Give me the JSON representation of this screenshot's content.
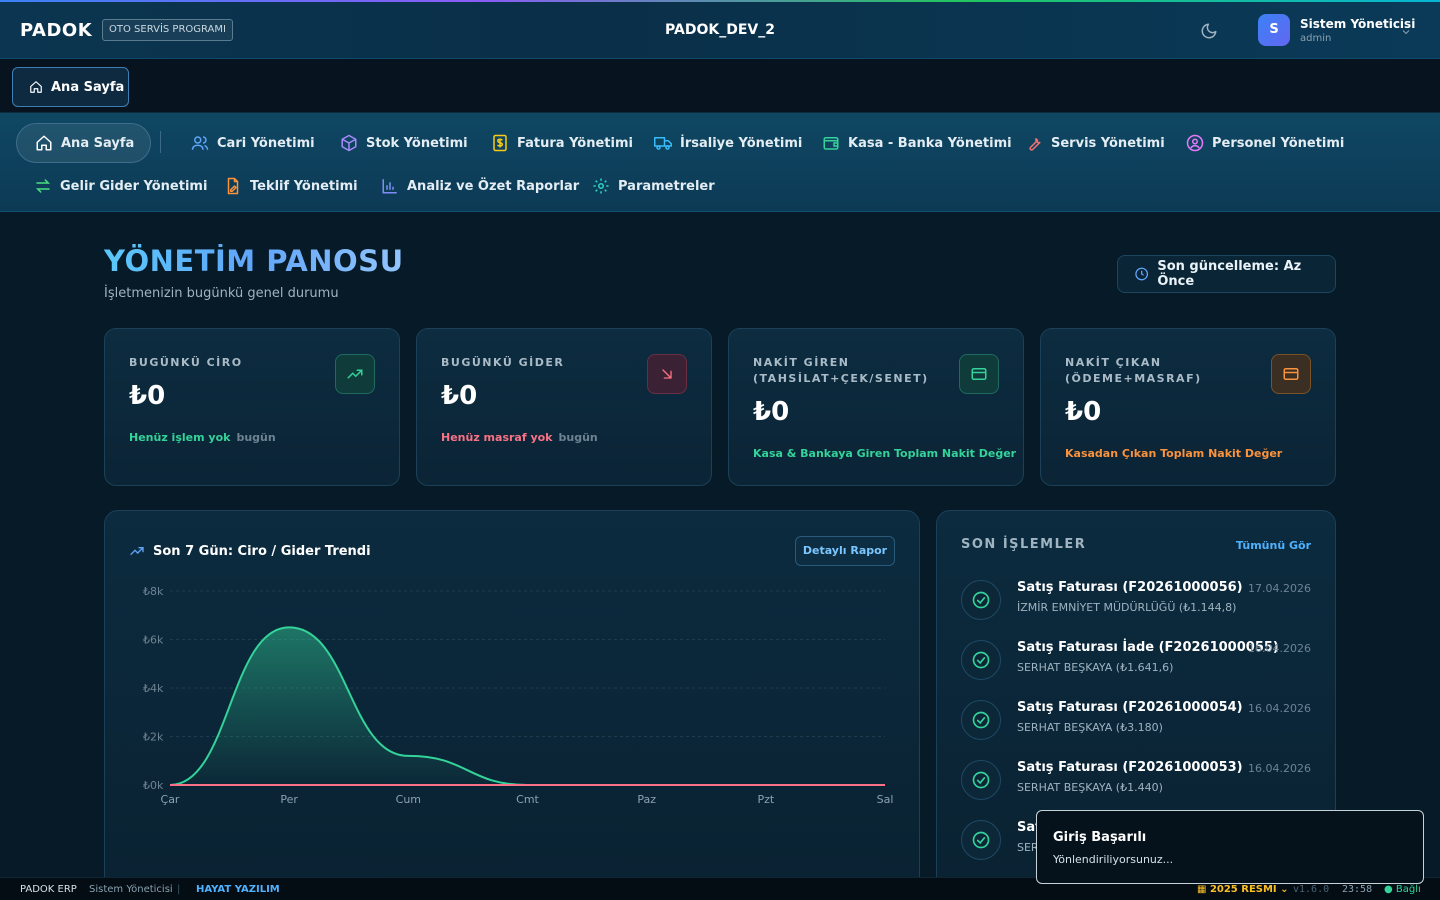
{
  "header": {
    "brand": "PADOK",
    "brand_tag": "OTO SERVİS PROGRAMI",
    "db_name": "PADOK_DEV_2",
    "user_initial": "S",
    "user_name": "Sistem Yöneticisi",
    "user_role": "admin"
  },
  "open_tabs": [
    {
      "label": "Ana Sayfa"
    }
  ],
  "nav": {
    "items": [
      {
        "label": "Ana Sayfa",
        "icon": "home-icon"
      },
      {
        "label": "Cari Yönetimi",
        "icon": "users-icon"
      },
      {
        "label": "Stok Yönetimi",
        "icon": "box-icon"
      },
      {
        "label": "Fatura Yönetimi",
        "icon": "invoice-icon"
      },
      {
        "label": "İrsaliye Yönetimi",
        "icon": "truck-icon"
      },
      {
        "label": "Kasa - Banka Yönetimi",
        "icon": "wallet-icon"
      },
      {
        "label": "Servis Yönetimi",
        "icon": "wrench-icon"
      },
      {
        "label": "Personel Yönetimi",
        "icon": "user-circle-icon"
      },
      {
        "label": "Gelir Gider Yönetimi",
        "icon": "arrows-exchange-icon"
      },
      {
        "label": "Teklif Yönetimi",
        "icon": "document-edit-icon"
      },
      {
        "label": "Analiz ve Özet Raporlar",
        "icon": "bar-chart-icon"
      },
      {
        "label": "Parametreler",
        "icon": "gear-icon"
      }
    ]
  },
  "dashboard": {
    "title": "YÖNETİM PANOSU",
    "subtitle": "İşletmenizin bugünkü genel durumu",
    "last_update": "Son güncelleme: Az Önce"
  },
  "cards": [
    {
      "label": "BUGÜNKÜ CİRO",
      "value": "₺0",
      "note": "Henüz işlem yok",
      "note_muted": "bugün",
      "note_color": "#34d399",
      "icon": "trend-up-icon",
      "icon_color": "#34d399"
    },
    {
      "label": "BUGÜNKÜ GİDER",
      "value": "₺0",
      "note": "Henüz masraf yok",
      "note_muted": "bugün",
      "note_color": "#fb7185",
      "icon": "arrow-down-right-icon",
      "icon_color": "#fb7185"
    },
    {
      "label": "NAKİT GİREN (TAHSİLAT+ÇEK/SENET)",
      "value": "₺0",
      "note": "Kasa & Bankaya Giren Toplam Nakit Değer",
      "note_muted": "",
      "note_color": "#34d399",
      "icon": "card-icon",
      "icon_color": "#34d399"
    },
    {
      "label": "NAKİT ÇIKAN (ÖDEME+MASRAF)",
      "value": "₺0",
      "note": "Kasadan Çıkan Toplam Nakit Değer",
      "note_muted": "",
      "note_color": "#fb923c",
      "icon": "card-icon",
      "icon_color": "#fb923c"
    }
  ],
  "chart_panel": {
    "title": "Son 7 Gün: Ciro / Gider Trendi",
    "detail_button": "Detaylı Rapor"
  },
  "chart_data": {
    "type": "area",
    "title": "Son 7 Gün: Ciro / Gider Trendi",
    "categories": [
      "Çar",
      "Per",
      "Cum",
      "Cmt",
      "Paz",
      "Pzt",
      "Sal"
    ],
    "ytick_labels": [
      "₺0k",
      "₺2k",
      "₺4k",
      "₺6k",
      "₺8k"
    ],
    "ylim": [
      0,
      8000
    ],
    "grid": true,
    "series": [
      {
        "values": [
          0,
          6500,
          1200,
          0,
          0,
          0,
          0
        ],
        "color": "#34d399"
      },
      {
        "values": [
          0,
          0,
          0,
          0,
          0,
          0,
          0
        ],
        "color": "#fb7185"
      }
    ]
  },
  "transactions": {
    "title": "SON İŞLEMLER",
    "view_all": "Tümünü Gör",
    "items": [
      {
        "title": "Satış Faturası (F20261000056)",
        "subtitle": "İZMİR EMNİYET MÜDÜRLÜĞÜ (₺1.144,8)",
        "date": "17.04.2026"
      },
      {
        "title": "Satış Faturası İade (F20261000055)",
        "subtitle": "SERHAT BEŞKAYA (₺1.641,6)",
        "date": "16.04.2026"
      },
      {
        "title": "Satış Faturası (F20261000054)",
        "subtitle": "SERHAT BEŞKAYA (₺3.180)",
        "date": "16.04.2026"
      },
      {
        "title": "Satış Faturası (F20261000053)",
        "subtitle": "SERHAT BEŞKAYA (₺1.440)",
        "date": "16.04.2026"
      },
      {
        "title": "Sat",
        "subtitle": "SER",
        "date": ""
      }
    ]
  },
  "toast": {
    "title": "Giriş Başarılı",
    "message": "Yönlendiriliyorsunuz..."
  },
  "statusbar": {
    "app": "PADOK ERP",
    "user": "Sistem Yöneticisi",
    "company": "HAYAT YAZILIM",
    "period": "2025 RESMİ",
    "version": "v1.6.0",
    "time": "23:58",
    "connection": "Bağlı"
  }
}
